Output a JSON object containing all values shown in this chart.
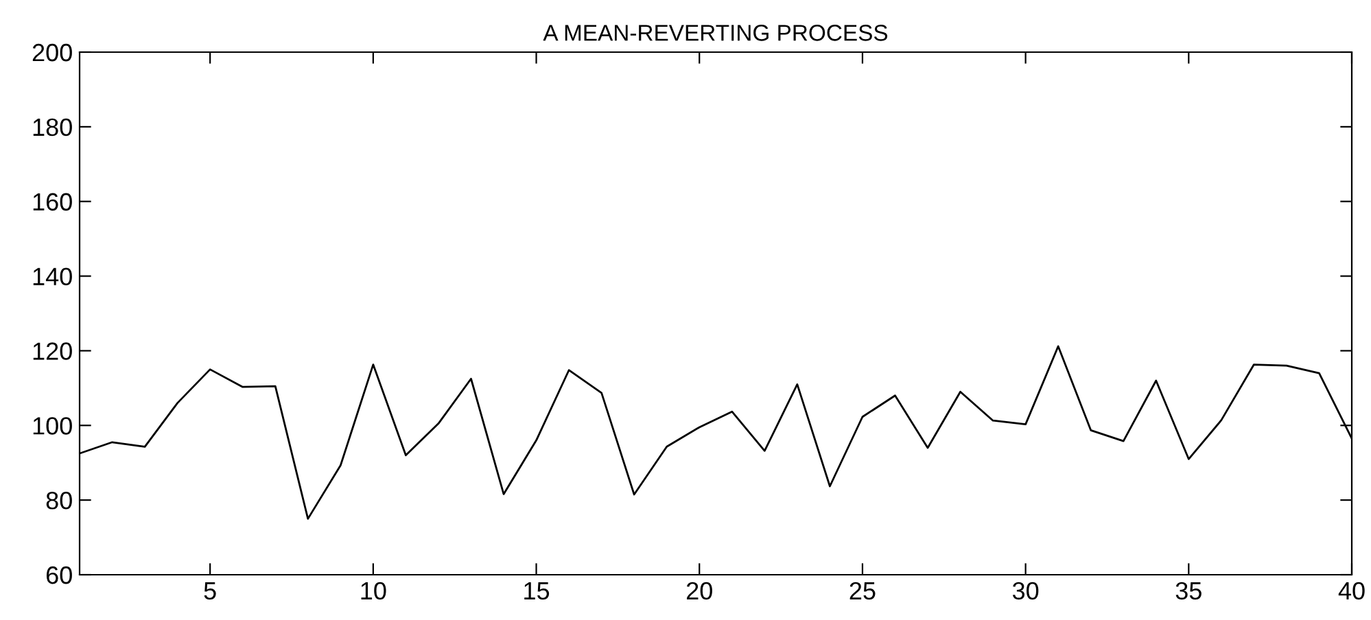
{
  "chart_data": {
    "type": "line",
    "title": "A MEAN-REVERTING PROCESS",
    "x": [
      1,
      2,
      3,
      4,
      5,
      6,
      7,
      8,
      9,
      10,
      11,
      12,
      13,
      14,
      15,
      16,
      17,
      18,
      19,
      20,
      21,
      22,
      23,
      24,
      25,
      26,
      27,
      28,
      29,
      30,
      31,
      32,
      33,
      34,
      35,
      36,
      37,
      38,
      39,
      40
    ],
    "series": [
      {
        "color": "#000000",
        "values": [
          92.5,
          95.5,
          94.3,
          106,
          115,
          110.3,
          110.5,
          75,
          89.3,
          116.3,
          92,
          100.5,
          112.5,
          81.6,
          96,
          114.8,
          108.7,
          81.5,
          94.3,
          99.5,
          103.7,
          93.2,
          111,
          83.7,
          102.3,
          108,
          94,
          109,
          101.3,
          100.3,
          121.2,
          98.7,
          95.8,
          112,
          91,
          101.4,
          116.3,
          116,
          114,
          96.5
        ]
      }
    ],
    "xlim": [
      1,
      40
    ],
    "xticks": [
      5,
      10,
      15,
      20,
      25,
      30,
      35,
      40
    ],
    "ylim": [
      60,
      200
    ],
    "yticks": [
      60,
      80,
      100,
      120,
      140,
      160,
      180,
      200
    ],
    "grid": false,
    "marker": "none",
    "line_style": "solid"
  }
}
